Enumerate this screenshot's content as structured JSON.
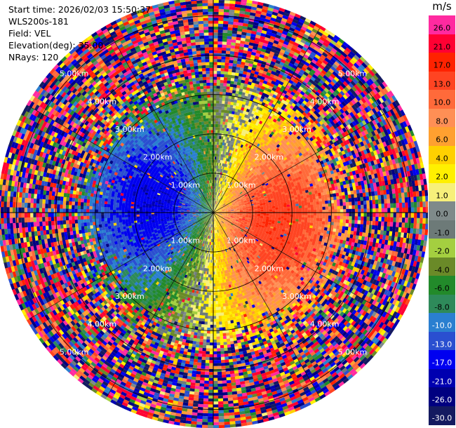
{
  "info": {
    "start_time": "Start time: 2026/02/03 15:50:37",
    "instrument": "WLS200s-181",
    "field": "Field: VEL",
    "elevation": "Elevation(deg): 35.00",
    "nrays": "NRays: 120"
  },
  "colorbar": {
    "unit": "m/s",
    "ticks": [
      "26.0",
      "21.0",
      "17.0",
      "13.0",
      "10.0",
      "8.0",
      "6.0",
      "4.0",
      "2.0",
      "1.0",
      "0.0",
      "-1.0",
      "-2.0",
      "-4.0",
      "-6.0",
      "-8.0",
      "-10.0",
      "-13.0",
      "-17.0",
      "-21.0",
      "-26.0",
      "-30.0"
    ],
    "colors": [
      "#ff2aa0",
      "#ff0033",
      "#ff2200",
      "#ff4422",
      "#ff6a3a",
      "#ff8f55",
      "#ffa030",
      "#ffd000",
      "#fff000",
      "#f7f07a",
      "#7f8a8a",
      "#6d7a78",
      "#a4cf40",
      "#6a8a28",
      "#228a2a",
      "#2e8a5a",
      "#2a7fd0",
      "#2a4fd0",
      "#0000f0",
      "#0000b0",
      "#000080",
      "#141a60"
    ]
  },
  "chart_data": {
    "type": "heatmap",
    "plot": "PPI radial velocity",
    "field": "VEL",
    "elevation_deg": 35.0,
    "n_rays": 120,
    "range_rings_km": [
      {
        "label": "1.00km",
        "km": 1.0
      },
      {
        "label": "2.00km",
        "km": 2.0
      },
      {
        "label": "3.00km",
        "km": 3.0
      },
      {
        "label": "4.00km",
        "km": 4.0
      },
      {
        "label": "5.00km",
        "km": 5.0
      }
    ],
    "max_range_km": 5.4,
    "color_scale": {
      "unit": "m/s",
      "boundaries": [
        -30,
        -26,
        -21,
        -17,
        -13,
        -10,
        -8,
        -6,
        -4,
        -2,
        -1,
        0,
        1,
        2,
        4,
        6,
        8,
        10,
        13,
        17,
        21,
        26
      ]
    },
    "velocity_pattern": {
      "positive_direction_deg": 100,
      "peak_near_field_ms": 16,
      "peak_range_km": 1.2,
      "noise_beyond_km": 3.2
    }
  }
}
